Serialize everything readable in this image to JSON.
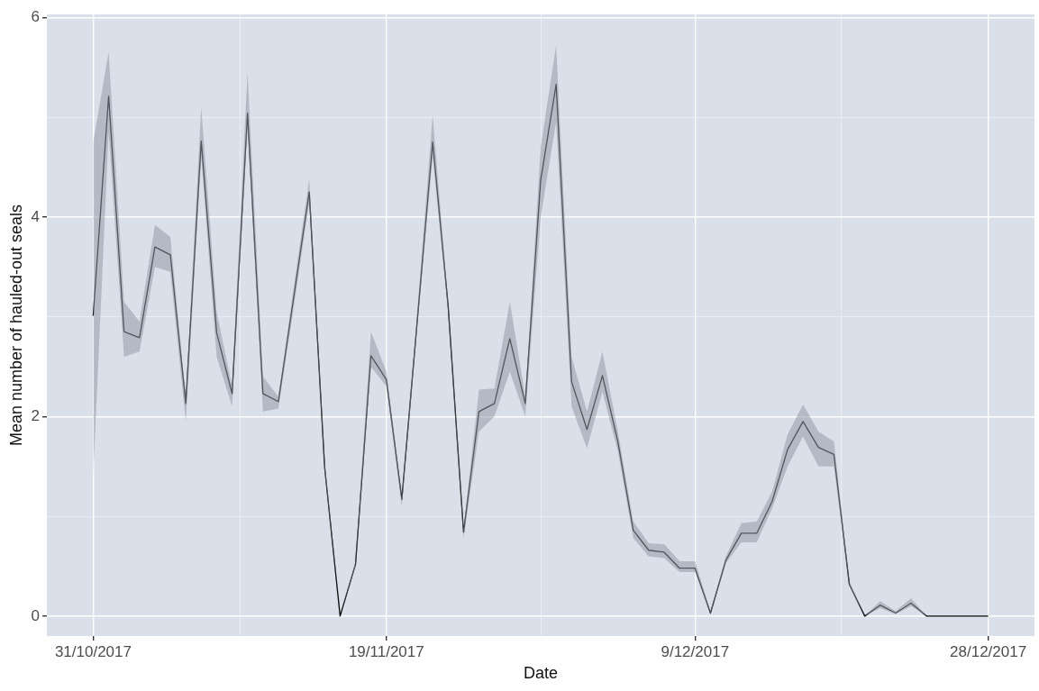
{
  "chart_data": {
    "type": "line",
    "xlabel": "Date",
    "ylabel": "Mean number of hauled-out seals",
    "x": [
      "2017-10-31",
      "2017-11-01",
      "2017-11-02",
      "2017-11-03",
      "2017-11-04",
      "2017-11-05",
      "2017-11-06",
      "2017-11-07",
      "2017-11-08",
      "2017-11-09",
      "2017-11-10",
      "2017-11-11",
      "2017-11-12",
      "2017-11-13",
      "2017-11-14",
      "2017-11-15",
      "2017-11-16",
      "2017-11-17",
      "2017-11-18",
      "2017-11-19",
      "2017-11-20",
      "2017-11-21",
      "2017-11-22",
      "2017-11-23",
      "2017-11-24",
      "2017-11-25",
      "2017-11-26",
      "2017-11-27",
      "2017-11-28",
      "2017-11-29",
      "2017-11-30",
      "2017-12-01",
      "2017-12-02",
      "2017-12-03",
      "2017-12-04",
      "2017-12-05",
      "2017-12-06",
      "2017-12-07",
      "2017-12-08",
      "2017-12-09",
      "2017-12-10",
      "2017-12-11",
      "2017-12-12",
      "2017-12-13",
      "2017-12-14",
      "2017-12-15",
      "2017-12-16",
      "2017-12-17",
      "2017-12-18",
      "2017-12-19",
      "2017-12-20",
      "2017-12-21",
      "2017-12-22",
      "2017-12-23",
      "2017-12-24",
      "2017-12-25",
      "2017-12-26",
      "2017-12-27",
      "2017-12-28"
    ],
    "series": [
      {
        "color": "#000000",
        "values": [
          3.01,
          5.21,
          2.85,
          2.79,
          3.7,
          3.62,
          2.13,
          4.76,
          2.84,
          2.23,
          5.04,
          2.23,
          2.15,
          3.2,
          4.25,
          1.49,
          0,
          0.52,
          2.61,
          2.37,
          1.17,
          2.96,
          4.75,
          3.11,
          0.84,
          2.05,
          2.13,
          2.78,
          2.13,
          4.37,
          5.33,
          2.35,
          1.87,
          2.41,
          1.75,
          0.86,
          0.66,
          0.64,
          0.48,
          0.48,
          0.03,
          0.56,
          0.83,
          0.83,
          1.15,
          1.67,
          1.95,
          1.69,
          1.62,
          0.32,
          0,
          0.11,
          0.03,
          0.13,
          0,
          0,
          0,
          0,
          0
        ],
        "lower": [
          1.4,
          4.85,
          2.6,
          2.65,
          3.5,
          3.45,
          1.95,
          4.6,
          2.6,
          2.1,
          4.9,
          2.05,
          2.08,
          3.1,
          4.15,
          1.45,
          0,
          0.5,
          2.5,
          2.3,
          1.1,
          2.9,
          4.6,
          3.05,
          0.78,
          1.85,
          2.0,
          2.45,
          2.0,
          4.0,
          4.95,
          2.1,
          1.68,
          2.25,
          1.65,
          0.78,
          0.6,
          0.58,
          0.44,
          0.44,
          0.02,
          0.53,
          0.74,
          0.74,
          1.08,
          1.5,
          1.8,
          1.5,
          1.5,
          0.3,
          0,
          0.08,
          0.02,
          0.1,
          0,
          0,
          0,
          0,
          0
        ],
        "upper": [
          4.75,
          5.65,
          3.15,
          2.95,
          3.92,
          3.8,
          2.2,
          5.1,
          3.05,
          2.3,
          5.45,
          2.4,
          2.2,
          3.3,
          4.38,
          1.55,
          0,
          0.55,
          2.85,
          2.45,
          1.2,
          3.05,
          5.02,
          3.15,
          0.88,
          2.27,
          2.28,
          3.15,
          2.2,
          4.7,
          5.72,
          2.6,
          2.05,
          2.65,
          1.85,
          0.95,
          0.73,
          0.72,
          0.55,
          0.55,
          0.05,
          0.6,
          0.93,
          0.95,
          1.25,
          1.82,
          2.12,
          1.85,
          1.75,
          0.35,
          0,
          0.15,
          0.05,
          0.18,
          0,
          0,
          0,
          0,
          0
        ]
      }
    ],
    "xlim": [
      "2017-10-28",
      "2017-12-31"
    ],
    "xticks": [
      {
        "value": "2017-10-31",
        "label": "31/10/2017"
      },
      {
        "value": "2017-11-09T12:00",
        "label": null
      },
      {
        "value": "2017-11-19",
        "label": "19/11/2017"
      },
      {
        "value": "2017-11-29",
        "label": null
      },
      {
        "value": "2017-12-09",
        "label": "9/12/2017"
      },
      {
        "value": "2017-12-18T12:00",
        "label": null
      },
      {
        "value": "2017-12-28",
        "label": "28/12/2017"
      }
    ],
    "ylim": [
      -0.2,
      6.03
    ],
    "yticks": [
      0,
      {
        "value": 1,
        "label": null
      },
      2,
      {
        "value": 3,
        "label": null
      },
      4,
      {
        "value": 5,
        "label": null
      },
      6
    ],
    "grid": true,
    "legend": false,
    "marker": "none",
    "line_style": "solid"
  }
}
